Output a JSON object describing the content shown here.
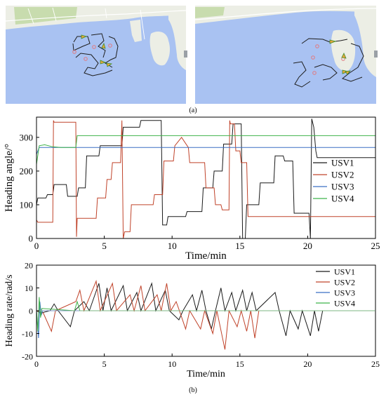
{
  "panel_labels": {
    "a": "(a)",
    "b": "(b)"
  },
  "colors": {
    "water": "#a9c2f2",
    "land": "#eceee5",
    "land_green": "#c8dcae",
    "road": "#ffffff",
    "path": "#1e1e1e",
    "usv_marker": "#e8a53a",
    "usv_head": "#3d8f2a",
    "target_point": "#e07a80",
    "legend_toggle": "#9aa0a6"
  },
  "chart_data": [
    {
      "type": "line",
      "xlabel": "Time/min",
      "ylabel": "Heading angle/°",
      "xlim": [
        0,
        25
      ],
      "ylim": [
        0,
        360
      ],
      "xticks": [
        0,
        5,
        10,
        15,
        20,
        25
      ],
      "yticks": [
        0,
        100,
        200,
        300
      ],
      "legend": "right",
      "grid": false,
      "series": [
        {
          "name": "USV1",
          "color": "#1a1a1a",
          "points": [
            [
              0.0,
              100
            ],
            [
              0.1,
              120
            ],
            [
              0.7,
              120
            ],
            [
              0.8,
              130
            ],
            [
              1.2,
              130
            ],
            [
              1.3,
              160
            ],
            [
              2.2,
              160
            ],
            [
              2.3,
              125
            ],
            [
              3.0,
              125
            ],
            [
              3.1,
              150
            ],
            [
              3.6,
              150
            ],
            [
              3.7,
              245
            ],
            [
              4.6,
              245
            ],
            [
              4.7,
              275
            ],
            [
              6.3,
              275
            ],
            [
              6.4,
              330
            ],
            [
              7.6,
              330
            ],
            [
              7.7,
              350
            ],
            [
              8.5,
              350
            ],
            [
              8.6,
              350
            ],
            [
              9.2,
              350
            ],
            [
              9.3,
              40
            ],
            [
              9.6,
              40
            ],
            [
              9.7,
              65
            ],
            [
              11.0,
              65
            ],
            [
              11.1,
              80
            ],
            [
              12.2,
              80
            ],
            [
              12.3,
              150
            ],
            [
              13.0,
              150
            ],
            [
              13.1,
              200
            ],
            [
              13.7,
              200
            ],
            [
              13.8,
              280
            ],
            [
              14.4,
              280
            ],
            [
              14.5,
              340
            ],
            [
              15.1,
              340
            ],
            [
              15.2,
              0
            ],
            [
              15.4,
              0
            ],
            [
              15.5,
              100
            ],
            [
              16.4,
              100
            ],
            [
              16.5,
              165
            ],
            [
              17.5,
              165
            ],
            [
              17.6,
              245
            ],
            [
              18.2,
              245
            ],
            [
              18.3,
              230
            ],
            [
              18.9,
              230
            ],
            [
              19.0,
              75
            ],
            [
              20.1,
              75
            ],
            [
              20.2,
              0
            ],
            [
              20.3,
              355
            ],
            [
              20.45,
              330
            ],
            [
              20.6,
              260
            ],
            [
              20.7,
              240
            ],
            [
              25.0,
              240
            ]
          ]
        },
        {
          "name": "USV2",
          "color": "#c0432a",
          "points": [
            [
              0.0,
              55
            ],
            [
              0.1,
              48
            ],
            [
              1.2,
              48
            ],
            [
              1.25,
              350
            ],
            [
              1.3,
              345
            ],
            [
              2.9,
              345
            ],
            [
              2.95,
              5
            ],
            [
              3.0,
              60
            ],
            [
              4.4,
              60
            ],
            [
              4.5,
              120
            ],
            [
              5.1,
              120
            ],
            [
              5.2,
              175
            ],
            [
              5.5,
              175
            ],
            [
              5.6,
              225
            ],
            [
              6.2,
              225
            ],
            [
              6.3,
              350
            ],
            [
              6.4,
              0
            ],
            [
              6.5,
              20
            ],
            [
              6.9,
              20
            ],
            [
              7.0,
              100
            ],
            [
              8.6,
              100
            ],
            [
              8.7,
              130
            ],
            [
              9.3,
              130
            ],
            [
              9.4,
              230
            ],
            [
              10.1,
              230
            ],
            [
              10.2,
              275
            ],
            [
              10.7,
              300
            ],
            [
              11.2,
              270
            ],
            [
              11.3,
              225
            ],
            [
              12.4,
              225
            ],
            [
              12.5,
              150
            ],
            [
              13.1,
              150
            ],
            [
              13.2,
              100
            ],
            [
              13.6,
              100
            ],
            [
              13.7,
              85
            ],
            [
              14.2,
              85
            ],
            [
              14.25,
              350
            ],
            [
              14.3,
              340
            ],
            [
              14.6,
              340
            ],
            [
              14.7,
              260
            ],
            [
              15.0,
              260
            ],
            [
              15.1,
              225
            ],
            [
              15.5,
              225
            ],
            [
              15.6,
              65
            ],
            [
              25.0,
              65
            ]
          ]
        },
        {
          "name": "USV3",
          "color": "#3a6fc4",
          "points": [
            [
              0.0,
              250
            ],
            [
              0.2,
              270
            ],
            [
              1.0,
              270
            ],
            [
              25.0,
              270
            ]
          ]
        },
        {
          "name": "USV4",
          "color": "#3fb34a",
          "points": [
            [
              0.0,
              220
            ],
            [
              0.2,
              275
            ],
            [
              0.6,
              278
            ],
            [
              1.2,
              272
            ],
            [
              1.8,
              270
            ],
            [
              2.9,
              270
            ],
            [
              3.0,
              305
            ],
            [
              25.0,
              305
            ]
          ]
        }
      ]
    },
    {
      "type": "line",
      "xlabel": "Time/min",
      "ylabel": "Heading rate/rad/s",
      "xlim": [
        0,
        25
      ],
      "ylim": [
        -20,
        20
      ],
      "xticks": [
        0,
        5,
        10,
        15,
        20,
        25
      ],
      "yticks": [
        -20,
        -10,
        0,
        10,
        20
      ],
      "legend": "top-right",
      "grid": false,
      "series": [
        {
          "name": "USV1",
          "color": "#1a1a1a",
          "points": [
            [
              0.0,
              0
            ],
            [
              0.3,
              -1
            ],
            [
              1.0,
              0
            ],
            [
              1.3,
              3
            ],
            [
              1.6,
              0
            ],
            [
              2.5,
              -7
            ],
            [
              2.8,
              0
            ],
            [
              3.5,
              4
            ],
            [
              3.9,
              0
            ],
            [
              4.6,
              12
            ],
            [
              4.9,
              0
            ],
            [
              5.2,
              10
            ],
            [
              5.5,
              0
            ],
            [
              6.4,
              11
            ],
            [
              6.7,
              0
            ],
            [
              7.4,
              8
            ],
            [
              7.7,
              0
            ],
            [
              8.5,
              12
            ],
            [
              8.8,
              0
            ],
            [
              9.5,
              9
            ],
            [
              9.8,
              0
            ],
            [
              10.5,
              -4
            ],
            [
              10.8,
              0
            ],
            [
              11.5,
              7
            ],
            [
              11.8,
              0
            ],
            [
              12.2,
              9
            ],
            [
              12.5,
              0
            ],
            [
              12.9,
              -8
            ],
            [
              13.2,
              0
            ],
            [
              13.6,
              10
            ],
            [
              13.9,
              0
            ],
            [
              14.4,
              8
            ],
            [
              14.7,
              0
            ],
            [
              15.2,
              9
            ],
            [
              15.5,
              0
            ],
            [
              15.9,
              8
            ],
            [
              16.2,
              0
            ],
            [
              17.6,
              8
            ],
            [
              17.9,
              0
            ],
            [
              18.4,
              -11
            ],
            [
              18.7,
              0
            ],
            [
              19.3,
              -8
            ],
            [
              19.6,
              0
            ],
            [
              20.2,
              -11
            ],
            [
              20.5,
              0
            ],
            [
              20.8,
              -9
            ],
            [
              21.1,
              0
            ],
            [
              21.3,
              0
            ]
          ]
        },
        {
          "name": "USV2",
          "color": "#c0432a",
          "points": [
            [
              0.0,
              0
            ],
            [
              0.5,
              -1
            ],
            [
              1.1,
              -9
            ],
            [
              1.4,
              0
            ],
            [
              2.9,
              4
            ],
            [
              3.2,
              9
            ],
            [
              3.5,
              0
            ],
            [
              4.4,
              13
            ],
            [
              4.7,
              0
            ],
            [
              5.6,
              12
            ],
            [
              5.9,
              0
            ],
            [
              6.9,
              7
            ],
            [
              7.2,
              0
            ],
            [
              7.7,
              11
            ],
            [
              8.0,
              0
            ],
            [
              8.9,
              7
            ],
            [
              9.2,
              0
            ],
            [
              9.6,
              12
            ],
            [
              9.9,
              0
            ],
            [
              10.3,
              4
            ],
            [
              10.6,
              -1
            ],
            [
              11.0,
              -8
            ],
            [
              11.3,
              0
            ],
            [
              12.1,
              -8
            ],
            [
              12.4,
              0
            ],
            [
              13.0,
              -10
            ],
            [
              13.3,
              0
            ],
            [
              13.9,
              -17
            ],
            [
              14.2,
              0
            ],
            [
              14.8,
              -7
            ],
            [
              15.1,
              0
            ],
            [
              15.5,
              -9
            ],
            [
              15.8,
              0
            ],
            [
              16.1,
              -12
            ],
            [
              16.4,
              0
            ],
            [
              16.8,
              0
            ]
          ]
        },
        {
          "name": "USV3",
          "color": "#3a6fc4",
          "points": [
            [
              0.0,
              0
            ],
            [
              0.15,
              -12
            ],
            [
              0.25,
              4
            ],
            [
              0.35,
              -2
            ],
            [
              0.45,
              0
            ],
            [
              25.0,
              0
            ]
          ]
        },
        {
          "name": "USV4",
          "color": "#3fb34a",
          "points": [
            [
              0.0,
              0
            ],
            [
              0.1,
              -9
            ],
            [
              0.2,
              6
            ],
            [
              0.3,
              -3
            ],
            [
              0.4,
              1
            ],
            [
              2.8,
              0
            ],
            [
              3.0,
              4
            ],
            [
              3.2,
              0
            ],
            [
              25.0,
              0
            ]
          ]
        }
      ]
    }
  ]
}
